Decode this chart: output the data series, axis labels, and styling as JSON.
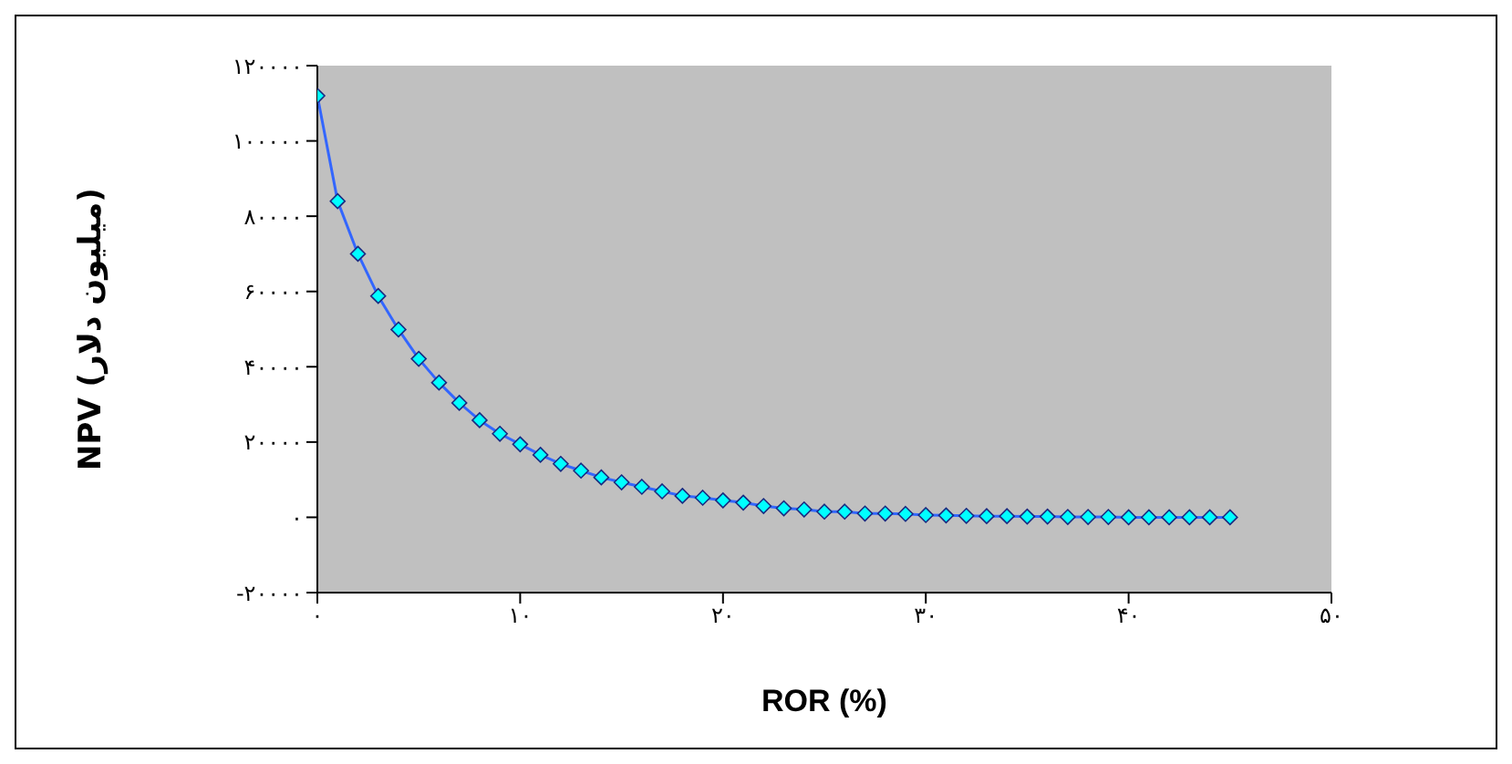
{
  "chart_data": {
    "type": "line",
    "xlabel": "ROR (%)",
    "ylabel": "NPV (میلیون دلار)",
    "x": [
      0,
      1,
      2,
      3,
      4,
      5,
      6,
      7,
      8,
      9,
      10,
      11,
      12,
      13,
      14,
      15,
      16,
      17,
      18,
      19,
      20,
      21,
      22,
      23,
      24,
      25,
      26,
      27,
      28,
      29,
      30,
      31,
      32,
      33,
      34,
      35,
      36,
      37,
      38,
      39,
      40,
      41,
      42,
      43,
      44,
      45
    ],
    "series": [
      {
        "color": "#3366ff",
        "values": [
          112000,
          84000,
          70000,
          58800,
          49900,
          42100,
          35800,
          30400,
          25800,
          22200,
          19400,
          16600,
          14200,
          12400,
          10600,
          9300,
          8100,
          6900,
          5700,
          5200,
          4500,
          3900,
          3000,
          2400,
          2100,
          1500,
          1500,
          1000,
          1000,
          900,
          600,
          500,
          400,
          300,
          300,
          200,
          200,
          100,
          100,
          100,
          0,
          0,
          0,
          0,
          0,
          0
        ]
      }
    ],
    "marker": "diamond",
    "grid": false,
    "legend": false,
    "xlim": [
      0,
      50
    ],
    "xticks": [
      {
        "value": 0,
        "label": "۰"
      },
      {
        "value": 10,
        "label": "۱۰"
      },
      {
        "value": 20,
        "label": "۲۰"
      },
      {
        "value": 30,
        "label": "۳۰"
      },
      {
        "value": 40,
        "label": "۴۰"
      },
      {
        "value": 50,
        "label": "۵۰"
      }
    ],
    "ylim": [
      -20000,
      120000
    ],
    "yticks": [
      {
        "value": -20000,
        "label": "-۲۰۰۰۰"
      },
      {
        "value": 0,
        "label": "۰"
      },
      {
        "value": 20000,
        "label": "۲۰۰۰۰"
      },
      {
        "value": 40000,
        "label": "۴۰۰۰۰"
      },
      {
        "value": 60000,
        "label": "۶۰۰۰۰"
      },
      {
        "value": 80000,
        "label": "۸۰۰۰۰"
      },
      {
        "value": 100000,
        "label": "۱۰۰۰۰۰"
      },
      {
        "value": 120000,
        "label": "۱۲۰۰۰۰"
      }
    ]
  }
}
